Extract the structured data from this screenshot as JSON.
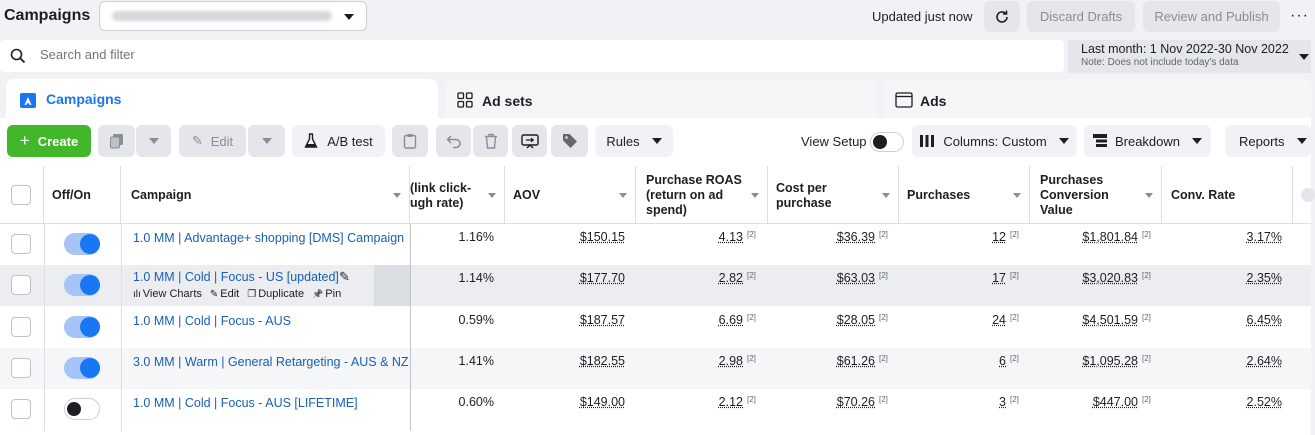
{
  "header": {
    "title": "Campaigns",
    "updated": "Updated just now",
    "discard_drafts": "Discard Drafts",
    "review_publish": "Review and Publish",
    "more": "···"
  },
  "search": {
    "placeholder": "Search and filter"
  },
  "date_range": {
    "label": "Last month: 1 Nov 2022-30 Nov 2022",
    "note": "Note: Does not include today's data"
  },
  "tabs": [
    {
      "label": "Campaigns"
    },
    {
      "label": "Ad sets"
    },
    {
      "label": "Ads"
    }
  ],
  "toolbar": {
    "create": "Create",
    "edit": "Edit",
    "ab_test": "A/B test",
    "rules": "Rules",
    "view_setup": "View Setup",
    "columns": "Columns: Custom",
    "breakdown": "Breakdown",
    "reports": "Reports"
  },
  "columns": {
    "off_on": "Off/On",
    "campaign": "Campaign",
    "ctr_line1": "(link click-",
    "ctr_line2": "ugh rate)",
    "aov": "AOV",
    "roas_line1": "Purchase ROAS",
    "roas_line2": "(return on ad",
    "roas_line3": "spend)",
    "cpp_line1": "Cost per",
    "cpp_line2": "purchase",
    "purchases": "Purchases",
    "pcv_line1": "Purchases",
    "pcv_line2": "Conversion",
    "pcv_line3": "Value",
    "conv_rate": "Conv. Rate"
  },
  "row_actions": {
    "view_charts": "View Charts",
    "edit": "Edit",
    "duplicate": "Duplicate",
    "pin": "Pin"
  },
  "footnote": "[2]",
  "rows": [
    {
      "on": true,
      "name": "1.0 MM | Advantage+ shopping [DMS] Campaign",
      "ctr": "1.16%",
      "aov": "$150.15",
      "roas": "4.13",
      "cpp": "$36.39",
      "purchases": "12",
      "pcv": "$1,801.84",
      "conv": "3.17%"
    },
    {
      "on": true,
      "name": "1.0 MM | Cold | Focus - US [updated]",
      "ctr": "1.14%",
      "aov": "$177.70",
      "roas": "2.82",
      "cpp": "$63.03",
      "purchases": "17",
      "pcv": "$3,020.83",
      "conv": "2.35%"
    },
    {
      "on": true,
      "name": "1.0 MM | Cold | Focus - AUS",
      "ctr": "0.59%",
      "aov": "$187.57",
      "roas": "6.69",
      "cpp": "$28.05",
      "purchases": "24",
      "pcv": "$4,501.59",
      "conv": "6.45%"
    },
    {
      "on": true,
      "name": "3.0 MM | Warm | General Retargeting - AUS & NZ",
      "ctr": "1.41%",
      "aov": "$182.55",
      "roas": "2.98",
      "cpp": "$61.26",
      "purchases": "6",
      "pcv": "$1,095.28",
      "conv": "2.64%"
    },
    {
      "on": false,
      "name": "1.0 MM | Cold | Focus - AUS [LIFETIME]",
      "ctr": "0.60%",
      "aov": "$149.00",
      "roas": "2.12",
      "cpp": "$70.26",
      "purchases": "3",
      "pcv": "$447.00",
      "conv": "2.52%"
    }
  ],
  "colors": {
    "accent": "#1877f2",
    "create": "#42b72a",
    "link": "#1a5fb4"
  }
}
